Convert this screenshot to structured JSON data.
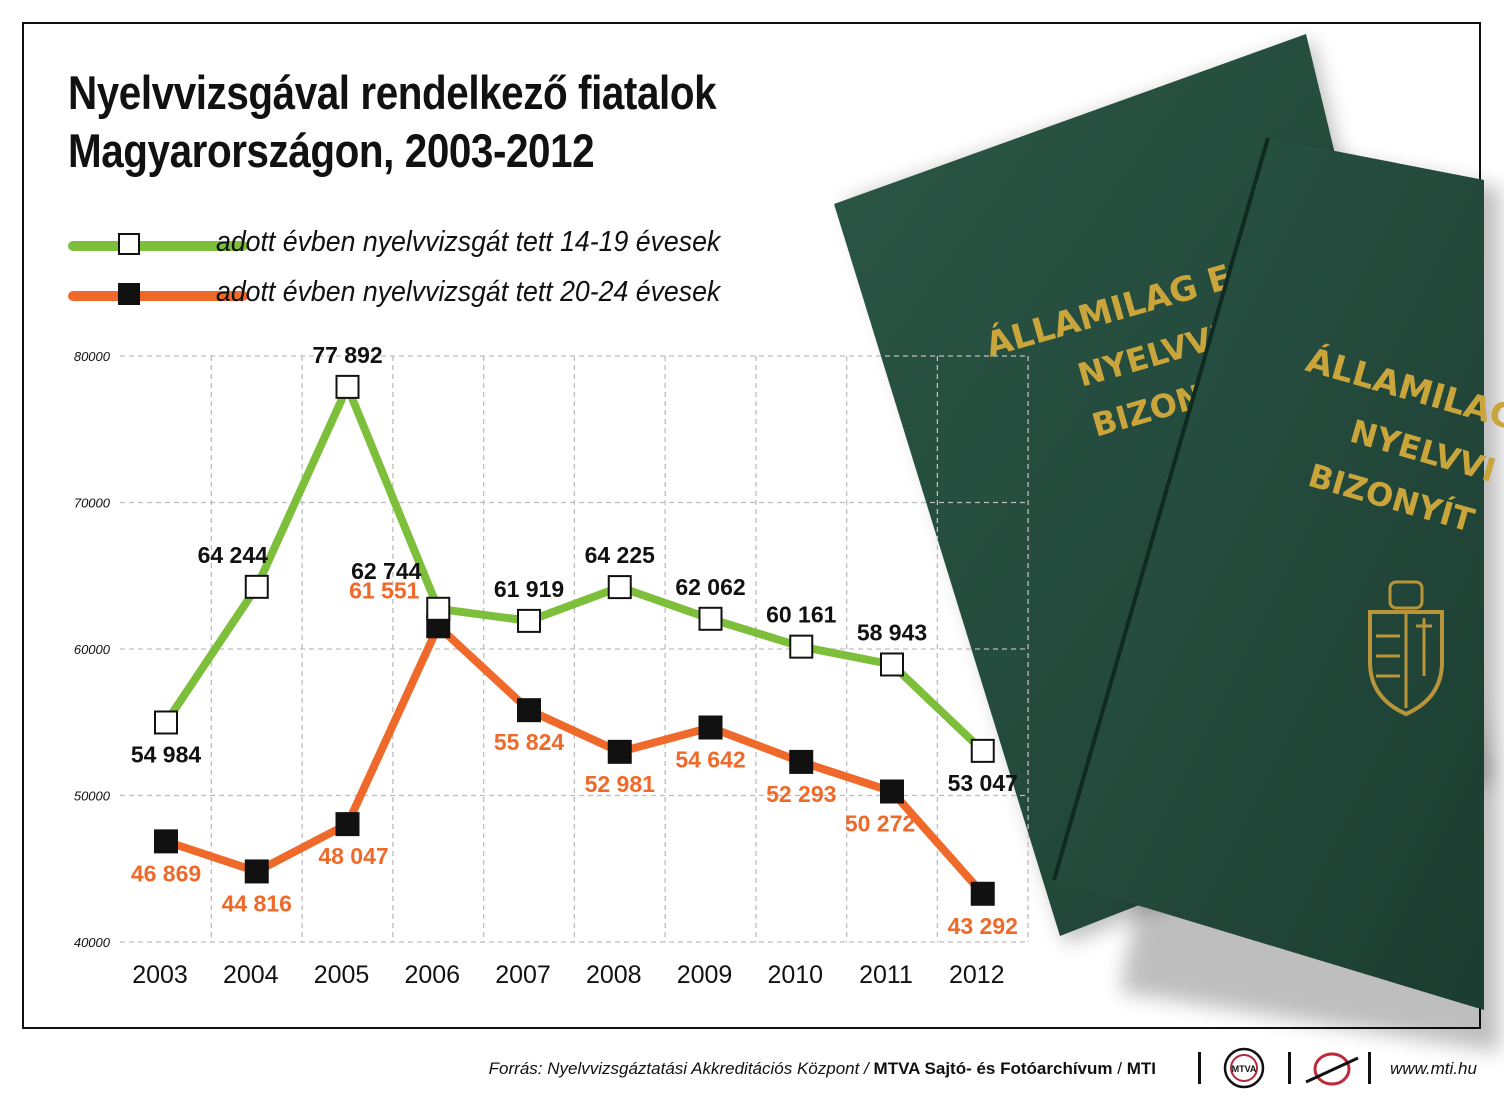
{
  "title": {
    "line1": "Nyelvvizsgával rendelkező fiatalok",
    "line2": "Magyarországon, 2003-2012"
  },
  "chart_data": {
    "type": "line",
    "x": [
      "2003",
      "2004",
      "2005",
      "2006",
      "2007",
      "2008",
      "2009",
      "2010",
      "2011",
      "2012"
    ],
    "series": [
      {
        "name": "adott évben nyelvvizsgát tett 14-19 évesek",
        "color": "#7dbf3b",
        "marker": "open-square",
        "values": [
          54984,
          64244,
          77892,
          62744,
          61919,
          64225,
          62062,
          60161,
          58943,
          53047
        ],
        "labels": [
          "54 984",
          "64 244",
          "77 892",
          "62 744",
          "61 919",
          "64 225",
          "62 062",
          "60 161",
          "58 943",
          "53 047"
        ],
        "label_color": "#111111"
      },
      {
        "name": "adott évben nyelvvizsgát tett 20-24 évesek",
        "color": "#ef6a2a",
        "marker": "filled-square",
        "values": [
          46869,
          44816,
          48047,
          61551,
          55824,
          52981,
          54642,
          52293,
          50272,
          43292
        ],
        "labels": [
          "46 869",
          "44 816",
          "48 047",
          "61 551",
          "55 824",
          "52 981",
          "54 642",
          "52 293",
          "50 272",
          "43 292"
        ],
        "label_color": "#ef6a2a"
      }
    ],
    "y_ticks": [
      40000,
      50000,
      60000,
      70000,
      80000
    ],
    "y_tick_labels": [
      "40000",
      "50000",
      "60000",
      "70000",
      "80000"
    ],
    "ylim": [
      40000,
      80000
    ],
    "grid": true,
    "legend_position": "top-left"
  },
  "booklet": {
    "text_back": [
      "ÁLLAMILAG ELIS",
      "NYELVVIZS",
      "BIZONYÍT"
    ],
    "text_front": [
      "ÁLLAMILAG",
      "NYELVVI",
      "BIZONYÍT"
    ],
    "cover_color": "#234a3c",
    "text_color": "#c9a53c"
  },
  "footer": {
    "source_italic": "Forrás: Nyelvvizsgáztatási Akkreditációs Központ /",
    "source_bold": "MTVA Sajtó- és Fotóarchívum",
    "source_sep": "/",
    "source_mti": "MTI",
    "logo1_text": "MTVA",
    "logo1_icon": "mtva-logo-icon",
    "logo2_icon": "mti-logo-icon",
    "website": "www.mti.hu"
  }
}
